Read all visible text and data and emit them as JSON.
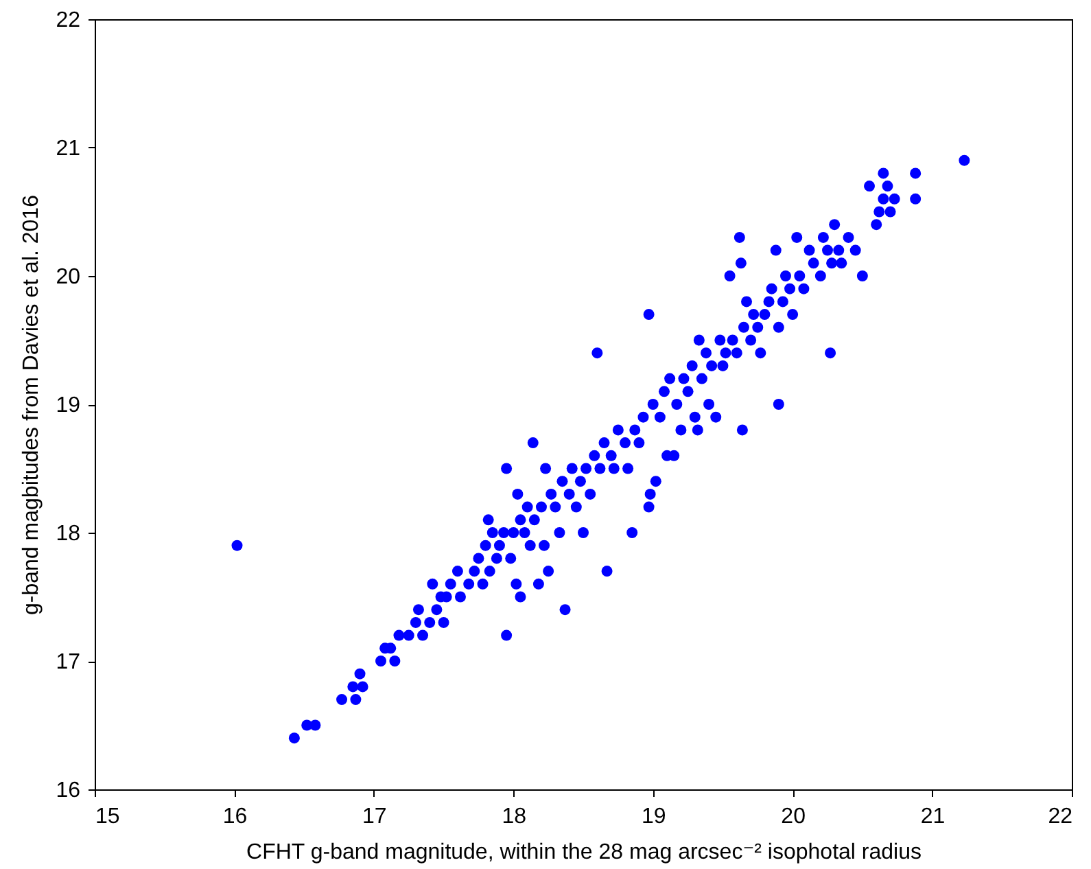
{
  "chart_data": {
    "type": "scatter",
    "xlabel": "CFHT g-band magnitude, within the 28 mag arcsec⁻² isophotal radius",
    "ylabel": "g-band magbitudes from Davies et al. 2016",
    "xlim": [
      15,
      22
    ],
    "ylim": [
      16,
      22
    ],
    "xticks": [
      15,
      16,
      17,
      18,
      19,
      20,
      21,
      22
    ],
    "yticks": [
      16,
      17,
      18,
      19,
      20,
      21,
      22
    ],
    "grid": false,
    "marker": "circle",
    "series": [
      {
        "color": "#0000ff",
        "x": [
          16.02,
          16.43,
          16.52,
          16.58,
          16.77,
          16.85,
          16.87,
          16.9,
          16.92,
          17.05,
          17.08,
          17.12,
          17.15,
          17.18,
          17.25,
          17.3,
          17.32,
          17.35,
          17.4,
          17.42,
          17.45,
          17.48,
          17.5,
          17.52,
          17.55,
          17.6,
          17.62,
          17.68,
          17.72,
          17.75,
          17.78,
          17.8,
          17.82,
          17.83,
          17.85,
          17.88,
          17.9,
          17.93,
          17.95,
          17.95,
          17.98,
          18.0,
          18.02,
          18.03,
          18.05,
          18.05,
          18.08,
          18.1,
          18.12,
          18.14,
          18.15,
          18.18,
          18.2,
          18.22,
          18.23,
          18.25,
          18.27,
          18.3,
          18.33,
          18.35,
          18.37,
          18.4,
          18.42,
          18.45,
          18.48,
          18.5,
          18.52,
          18.55,
          18.58,
          18.6,
          18.62,
          18.65,
          18.67,
          18.7,
          18.72,
          18.75,
          18.8,
          18.82,
          18.85,
          18.87,
          18.9,
          18.93,
          18.97,
          18.97,
          18.98,
          19.0,
          19.02,
          19.05,
          19.08,
          19.1,
          19.12,
          19.15,
          19.17,
          19.2,
          19.22,
          19.25,
          19.28,
          19.3,
          19.32,
          19.33,
          19.35,
          19.38,
          19.4,
          19.42,
          19.45,
          19.48,
          19.5,
          19.52,
          19.55,
          19.57,
          19.6,
          19.62,
          19.63,
          19.64,
          19.65,
          19.67,
          19.7,
          19.72,
          19.75,
          19.77,
          19.8,
          19.83,
          19.85,
          19.88,
          19.9,
          19.9,
          19.93,
          19.95,
          19.98,
          20.0,
          20.03,
          20.05,
          20.08,
          20.12,
          20.15,
          20.2,
          20.22,
          20.25,
          20.27,
          20.28,
          20.3,
          20.33,
          20.35,
          20.4,
          20.45,
          20.5,
          20.55,
          20.6,
          20.62,
          20.65,
          20.65,
          20.68,
          20.7,
          20.73,
          20.88,
          20.88,
          21.23
        ],
        "values": [
          17.9,
          16.4,
          16.5,
          16.5,
          16.7,
          16.8,
          16.7,
          16.9,
          16.8,
          17.0,
          17.1,
          17.1,
          17.0,
          17.2,
          17.2,
          17.3,
          17.4,
          17.2,
          17.3,
          17.6,
          17.4,
          17.5,
          17.3,
          17.5,
          17.6,
          17.7,
          17.5,
          17.6,
          17.7,
          17.8,
          17.6,
          17.9,
          18.1,
          17.7,
          18.0,
          17.8,
          17.9,
          18.0,
          17.2,
          18.5,
          17.8,
          18.0,
          17.6,
          18.3,
          17.5,
          18.1,
          18.0,
          18.2,
          17.9,
          18.7,
          18.1,
          17.6,
          18.2,
          17.9,
          18.5,
          17.7,
          18.3,
          18.2,
          18.0,
          18.4,
          17.4,
          18.3,
          18.5,
          18.2,
          18.4,
          18.0,
          18.5,
          18.3,
          18.6,
          19.4,
          18.5,
          18.7,
          17.7,
          18.6,
          18.5,
          18.8,
          18.7,
          18.5,
          18.0,
          18.8,
          18.7,
          18.9,
          19.7,
          18.2,
          18.3,
          19.0,
          18.4,
          18.9,
          19.1,
          18.6,
          19.2,
          18.6,
          19.0,
          18.8,
          19.2,
          19.1,
          19.3,
          18.9,
          18.8,
          19.5,
          19.2,
          19.4,
          19.0,
          19.3,
          18.9,
          19.5,
          19.3,
          19.4,
          20.0,
          19.5,
          19.4,
          20.3,
          20.1,
          18.8,
          19.6,
          19.8,
          19.5,
          19.7,
          19.6,
          19.4,
          19.7,
          19.8,
          19.9,
          20.2,
          19.0,
          19.6,
          19.8,
          20.0,
          19.9,
          19.7,
          20.3,
          20.0,
          19.9,
          20.2,
          20.1,
          20.0,
          20.3,
          20.2,
          19.4,
          20.1,
          20.4,
          20.2,
          20.1,
          20.3,
          20.2,
          20.0,
          20.7,
          20.4,
          20.5,
          20.8,
          20.6,
          20.7,
          20.5,
          20.6,
          20.8,
          20.6,
          20.9
        ]
      }
    ]
  }
}
